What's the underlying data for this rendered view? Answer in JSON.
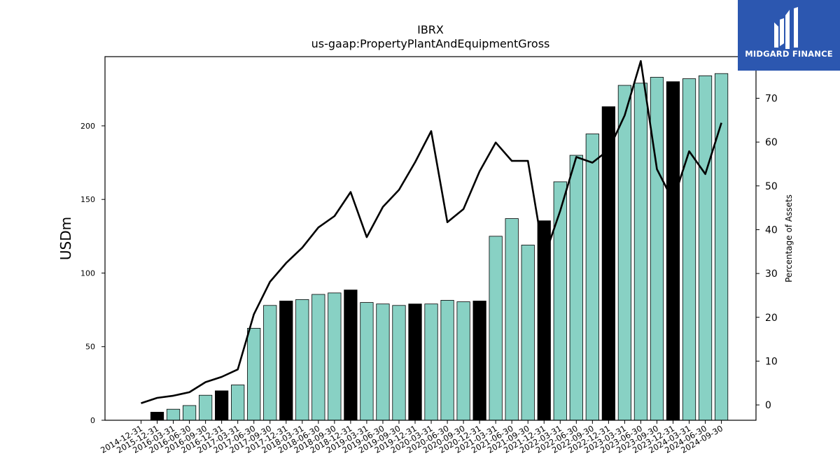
{
  "brand": {
    "name": "MIDGARD FINANCE",
    "background": "#2c57b0"
  },
  "colors": {
    "bar_default": "#88d1c4",
    "bar_highlight": "#000000",
    "line": "#000000"
  },
  "chart_data": {
    "type": "bar",
    "title": "IBRX",
    "subtitle": "us-gaap:PropertyPlantAndEquipmentGross",
    "ylabel": "USDm",
    "ylabel_right": "Percentage of Assets",
    "ylim": [
      0,
      247
    ],
    "ylim_right": [
      -3.5,
      79.5
    ],
    "yticks": [
      0,
      50,
      100,
      150,
      200
    ],
    "yticks_right": [
      0,
      10,
      20,
      30,
      40,
      50,
      60,
      70
    ],
    "categories": [
      "2014-12-31",
      "2015-12-31",
      "2016-03-31",
      "2016-06-30",
      "2016-09-30",
      "2016-12-31",
      "2017-03-31",
      "2017-06-30",
      "2017-09-30",
      "2017-12-31",
      "2018-03-31",
      "2018-06-30",
      "2018-09-30",
      "2018-12-31",
      "2019-03-31",
      "2019-06-30",
      "2019-09-30",
      "2019-12-31",
      "2020-03-31",
      "2020-06-30",
      "2020-09-30",
      "2020-12-31",
      "2021-03-31",
      "2021-06-30",
      "2021-09-30",
      "2021-12-31",
      "2022-03-31",
      "2022-06-30",
      "2022-09-30",
      "2022-12-31",
      "2023-03-31",
      "2023-06-30",
      "2023-09-30",
      "2023-12-31",
      "2024-03-31",
      "2024-06-30",
      "2024-09-30"
    ],
    "series": [
      {
        "kind": "bar",
        "axis": "left",
        "values": [
          0,
          5.5,
          7.5,
          10,
          17,
          20,
          24,
          62.5,
          78,
          81,
          82,
          85.5,
          86.5,
          88.5,
          80,
          79,
          78,
          79,
          79,
          81.5,
          80.5,
          81,
          125,
          137,
          119,
          135.5,
          162,
          180,
          194.5,
          213,
          227.5,
          229,
          233,
          230,
          232,
          234,
          235.5
        ],
        "highlighted": [
          false,
          true,
          false,
          false,
          false,
          true,
          false,
          false,
          false,
          true,
          false,
          false,
          false,
          true,
          false,
          false,
          false,
          true,
          false,
          false,
          false,
          true,
          false,
          false,
          false,
          true,
          false,
          false,
          false,
          true,
          false,
          false,
          false,
          true,
          false,
          false,
          false
        ]
      },
      {
        "kind": "line",
        "axis": "right",
        "values": [
          0.4,
          1.6,
          2.1,
          2.9,
          5.2,
          6.4,
          8.1,
          20.7,
          28.1,
          32.4,
          35.9,
          40.5,
          43.1,
          48.6,
          38.3,
          45.2,
          49.1,
          55.4,
          62.5,
          41.7,
          44.7,
          53.3,
          59.9,
          55.7,
          55.7,
          33.6,
          44.3,
          56.6,
          55.3,
          58.2,
          66.1,
          78.5,
          53.8,
          46.6,
          57.9,
          52.7,
          64.4
        ]
      }
    ]
  }
}
